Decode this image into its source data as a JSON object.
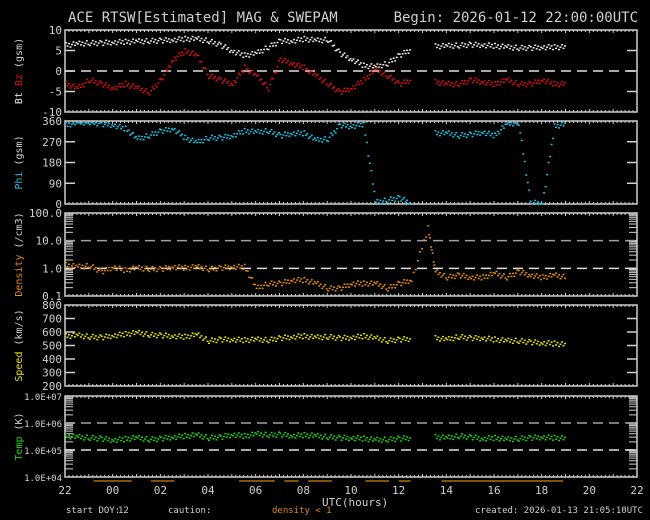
{
  "header": {
    "title": "ACE RTSW[Estimated] MAG & SWEPAM",
    "begin": "Begin: 2026-01-12 22:00:00UTC"
  },
  "footer": {
    "start_doy_label": "start DOY:",
    "start_doy_value": "12",
    "caution_label": "caution:",
    "caution_value": "density < 1",
    "created": "created: 2026-01-13 21:05:10UTC",
    "xaxis_label": "UTC(hours)"
  },
  "colors": {
    "background": "#000000",
    "frame": "#d0d0d0",
    "bt": "#e8e8e8",
    "bz": "#e01010",
    "phi": "#20c0e0",
    "density": "#e08a10",
    "speed": "#e0e010",
    "temp": "#20d020"
  },
  "chart_data": [
    {
      "type": "scatter",
      "panel": "mag",
      "ylabel_parts": [
        {
          "text": "Bt",
          "color": "#e8e8e8"
        },
        {
          "text": "Bz",
          "color": "#e01010"
        },
        {
          "text": "(gsm)",
          "color": "#d0d0d0"
        }
      ],
      "yticks": [
        "10",
        "5",
        "0",
        "-5",
        "-10"
      ],
      "ylim": [
        -10,
        10
      ],
      "scale": "linear",
      "dashed_refs": [
        0
      ],
      "series": [
        {
          "name": "Bt",
          "color": "#e8e8e8",
          "x": [
            0,
            0.5,
            1,
            1.5,
            2,
            2.5,
            3,
            3.5,
            4,
            4.5,
            5,
            5.5,
            6,
            6.5,
            7,
            7.5,
            8,
            8.5,
            9,
            9.5,
            10,
            10.5,
            11,
            11.5,
            12,
            12.5,
            13,
            13.5,
            14,
            14.5,
            15.5,
            16,
            16.5,
            17,
            17.5,
            18,
            18.5,
            19,
            19.5,
            20,
            20.5,
            21
          ],
          "y": [
            6.5,
            6.8,
            7,
            7,
            7.2,
            7.3,
            7.4,
            7.5,
            7.6,
            7.8,
            8,
            8,
            7.5,
            6.5,
            5,
            4,
            4.5,
            6,
            7.5,
            7.5,
            8,
            7.6,
            7.8,
            4.5,
            3,
            1.5,
            1.2,
            2,
            4,
            5.5,
            6.2,
            6.3,
            6.4,
            6.6,
            6.5,
            6.3,
            6,
            5.8,
            5.8,
            6,
            6,
            6
          ]
        },
        {
          "name": "Bz",
          "color": "#e01010",
          "x": [
            0,
            0.5,
            1,
            1.5,
            2,
            2.5,
            3,
            3.5,
            4,
            4.5,
            5,
            5.5,
            6,
            6.5,
            7,
            7.5,
            8,
            8.5,
            9,
            9.5,
            10,
            10.5,
            11,
            11.5,
            12,
            12.5,
            13,
            13.5,
            14,
            14.5,
            15.5,
            16,
            16.5,
            17,
            17.5,
            18,
            18.5,
            19,
            19.5,
            20,
            20.5,
            21
          ],
          "y": [
            -3,
            -4,
            -2,
            -3,
            -4,
            -3,
            -4,
            -5,
            -2,
            3,
            5,
            4,
            -1,
            -2,
            -3,
            1,
            -1,
            -4,
            3,
            2,
            1,
            -1,
            -3,
            -5,
            -4,
            -2,
            0.5,
            -1,
            -3,
            -2,
            -2.5,
            -3,
            -3,
            -2,
            -2.5,
            -3,
            -2,
            -3,
            -3,
            -2,
            -3,
            -3
          ]
        }
      ]
    },
    {
      "type": "scatter",
      "panel": "phi",
      "ylabel_parts": [
        {
          "text": "Phi",
          "color": "#20c0e0"
        },
        {
          "text": "(gsm)",
          "color": "#d0d0d0"
        }
      ],
      "yticks": [
        "360",
        "270",
        "180",
        "90",
        "0"
      ],
      "ylim": [
        0,
        360
      ],
      "scale": "linear",
      "dashed_refs": [],
      "series": [
        {
          "name": "Phi",
          "color": "#20c0e0",
          "x": [
            0,
            0.5,
            1,
            1.5,
            2,
            2.5,
            3,
            3.5,
            4,
            4.5,
            5,
            5.5,
            6,
            6.5,
            7,
            7.5,
            8,
            8.5,
            9,
            9.5,
            10,
            10.5,
            11,
            11.5,
            12,
            12.5,
            13,
            13.5,
            14,
            14.5,
            15.5,
            16,
            16.5,
            17,
            17.5,
            18,
            18.5,
            19,
            19.5,
            20,
            20.5,
            21
          ],
          "y": [
            345,
            355,
            358,
            350,
            345,
            330,
            285,
            300,
            320,
            330,
            290,
            270,
            290,
            290,
            300,
            320,
            315,
            320,
            300,
            310,
            310,
            280,
            285,
            345,
            340,
            350,
            10,
            20,
            30,
            5,
            310,
            310,
            300,
            305,
            315,
            300,
            350,
            355,
            10,
            5,
            340,
            350
          ]
        }
      ]
    },
    {
      "type": "scatter",
      "panel": "density",
      "ylabel_parts": [
        {
          "text": "Density",
          "color": "#e08a10"
        },
        {
          "text": "(/cm3)",
          "color": "#d0d0d0"
        }
      ],
      "yticks": [
        "100.0",
        "10.0",
        "1.0",
        "0.1"
      ],
      "ylim": [
        0.1,
        100
      ],
      "scale": "log",
      "dashed_refs": [
        10,
        1
      ],
      "series": [
        {
          "name": "Density",
          "color": "#e08a10",
          "x": [
            0,
            0.5,
            1,
            1.5,
            2,
            2.5,
            3,
            3.5,
            4,
            4.5,
            5,
            5.5,
            6,
            6.5,
            7,
            7.5,
            8,
            8.5,
            9,
            9.5,
            10,
            10.5,
            11,
            11.5,
            12,
            12.5,
            13,
            13.5,
            14,
            14.5,
            15.2,
            15.5,
            16,
            16.5,
            17,
            17.5,
            18,
            18.5,
            19,
            19.5,
            20,
            20.5,
            21
          ],
          "y": [
            1.4,
            1.2,
            1.3,
            0.8,
            1.2,
            0.9,
            1.1,
            1.0,
            1.0,
            1.2,
            1.1,
            1.2,
            1.0,
            1.1,
            1.2,
            1.2,
            0.2,
            0.3,
            0.3,
            0.4,
            0.4,
            0.3,
            0.2,
            0.2,
            0.3,
            0.3,
            0.3,
            0.2,
            0.3,
            0.4,
            30,
            0.8,
            0.5,
            0.6,
            0.5,
            0.5,
            0.7,
            0.5,
            0.8,
            0.6,
            0.5,
            0.6,
            0.5
          ]
        }
      ]
    },
    {
      "type": "scatter",
      "panel": "speed",
      "ylabel_parts": [
        {
          "text": "Speed",
          "color": "#e0e010"
        },
        {
          "text": "(km/s)",
          "color": "#d0d0d0"
        }
      ],
      "yticks": [
        "800",
        "700",
        "600",
        "500",
        "400",
        "300",
        "200"
      ],
      "ylim": [
        200,
        800
      ],
      "scale": "linear",
      "dashed_refs": [],
      "series": [
        {
          "name": "Speed",
          "color": "#e0e010",
          "x": [
            0,
            0.5,
            1,
            1.5,
            2,
            2.5,
            3,
            3.5,
            4,
            4.5,
            5,
            5.5,
            6,
            6.5,
            7,
            7.5,
            8,
            8.5,
            9,
            9.5,
            10,
            10.5,
            11,
            11.5,
            12,
            12.5,
            13,
            13.5,
            14,
            14.5,
            15.5,
            16,
            16.5,
            17,
            17.5,
            18,
            18.5,
            19,
            19.5,
            20,
            20.5,
            21
          ],
          "y": [
            575,
            580,
            570,
            565,
            580,
            590,
            600,
            585,
            580,
            575,
            570,
            585,
            540,
            550,
            550,
            545,
            550,
            545,
            560,
            570,
            575,
            565,
            570,
            560,
            565,
            575,
            560,
            540,
            550,
            555,
            560,
            550,
            570,
            560,
            560,
            550,
            540,
            540,
            530,
            525,
            520,
            510
          ]
        }
      ]
    },
    {
      "type": "scatter",
      "panel": "temp",
      "ylabel_parts": [
        {
          "text": "Temp",
          "color": "#20d020"
        },
        {
          "text": "(K)",
          "color": "#d0d0d0"
        }
      ],
      "yticks": [
        "1.0E+07",
        "1.0E+06",
        "1.0E+05",
        "1.0E+04"
      ],
      "ylim": [
        10000,
        10000000
      ],
      "scale": "log",
      "dashed_refs": [
        1000000,
        100000
      ],
      "series": [
        {
          "name": "Temp",
          "color": "#20d020",
          "x": [
            0,
            0.5,
            1,
            1.5,
            2,
            2.5,
            3,
            3.5,
            4,
            4.5,
            5,
            5.5,
            6,
            6.5,
            7,
            7.5,
            8,
            8.5,
            9,
            9.5,
            10,
            10.5,
            11,
            11.5,
            12,
            12.5,
            13,
            13.5,
            14,
            14.5,
            15.5,
            16,
            16.5,
            17,
            17.5,
            18,
            18.5,
            19,
            19.5,
            20,
            20.5,
            21
          ],
          "y": [
            350000,
            320000,
            300000,
            280000,
            250000,
            270000,
            300000,
            260000,
            280000,
            320000,
            350000,
            380000,
            300000,
            320000,
            400000,
            350000,
            420000,
            380000,
            400000,
            360000,
            380000,
            350000,
            320000,
            300000,
            300000,
            280000,
            250000,
            260000,
            280000,
            300000,
            320000,
            300000,
            350000,
            320000,
            280000,
            300000,
            260000,
            280000,
            300000,
            320000,
            300000,
            280000
          ]
        }
      ]
    }
  ],
  "xaxis": {
    "ticks": [
      "22",
      "00",
      "02",
      "04",
      "06",
      "08",
      "10",
      "12",
      "14",
      "16",
      "18",
      "20",
      "22"
    ],
    "range_hours": [
      0,
      24
    ]
  },
  "caution_segments": [
    [
      7.3,
      8.8
    ],
    [
      9.2,
      9.8
    ],
    [
      10.2,
      11.2
    ],
    [
      12.6,
      13.6
    ],
    [
      14.0,
      14.5
    ],
    [
      15.8,
      20.9
    ],
    [
      1.2,
      2.8
    ],
    [
      3.6,
      4.6
    ]
  ]
}
